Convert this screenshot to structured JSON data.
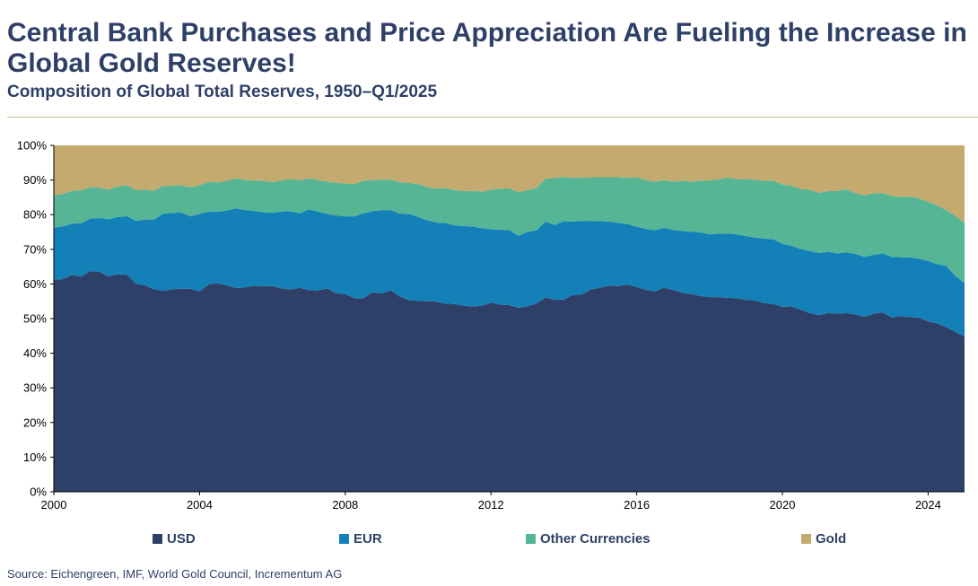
{
  "title": "Central Bank Purchases and Price Appreciation Are Fueling the Increase in Global Gold Reserves!",
  "subtitle": "Composition of Global Total Reserves, 1950–Q1/2025",
  "source": "Source: Eichengreen, IMF, World Gold Council, Incrementum AG",
  "colors": {
    "usd": "#2e4068",
    "eur": "#1380b8",
    "other": "#55b594",
    "gold": "#c4aa6e",
    "title": "#2e4068"
  },
  "chart_data": {
    "type": "area",
    "stacked": true,
    "xlabel": "",
    "ylabel": "",
    "xlim": [
      2000,
      2025.0
    ],
    "ylim": [
      0,
      100
    ],
    "y_ticks": [
      "0%",
      "10%",
      "20%",
      "30%",
      "40%",
      "50%",
      "60%",
      "70%",
      "80%",
      "90%",
      "100%"
    ],
    "x_ticks": [
      "2000",
      "2004",
      "2008",
      "2012",
      "2016",
      "2020",
      "2024"
    ],
    "x": [
      2000.0,
      2000.25,
      2000.5,
      2000.75,
      2001.0,
      2001.25,
      2001.5,
      2001.75,
      2002.0,
      2002.25,
      2002.5,
      2002.75,
      2003.0,
      2003.25,
      2003.5,
      2003.75,
      2004.0,
      2004.25,
      2004.5,
      2004.75,
      2005.0,
      2005.25,
      2005.5,
      2005.75,
      2006.0,
      2006.25,
      2006.5,
      2006.75,
      2007.0,
      2007.25,
      2007.5,
      2007.75,
      2008.0,
      2008.25,
      2008.5,
      2008.75,
      2009.0,
      2009.25,
      2009.5,
      2009.75,
      2010.0,
      2010.25,
      2010.5,
      2010.75,
      2011.0,
      2011.25,
      2011.5,
      2011.75,
      2012.0,
      2012.25,
      2012.5,
      2012.75,
      2013.0,
      2013.25,
      2013.5,
      2013.75,
      2014.0,
      2014.25,
      2014.5,
      2014.75,
      2015.0,
      2015.25,
      2015.5,
      2015.75,
      2016.0,
      2016.25,
      2016.5,
      2016.75,
      2017.0,
      2017.25,
      2017.5,
      2017.75,
      2018.0,
      2018.25,
      2018.5,
      2018.75,
      2019.0,
      2019.25,
      2019.5,
      2019.75,
      2020.0,
      2020.25,
      2020.5,
      2020.75,
      2021.0,
      2021.25,
      2021.5,
      2021.75,
      2022.0,
      2022.25,
      2022.5,
      2022.75,
      2023.0,
      2023.25,
      2023.5,
      2023.75,
      2024.0,
      2024.25,
      2024.5,
      2024.75,
      2025.0
    ],
    "series": [
      {
        "name": "USD",
        "values": [
          61.2,
          61.4,
          62.6,
          62.1,
          63.7,
          63.5,
          62.2,
          62.8,
          62.7,
          60.1,
          59.6,
          58.5,
          58.0,
          58.5,
          58.6,
          58.6,
          57.8,
          59.9,
          60.2,
          59.6,
          58.8,
          59.0,
          59.5,
          59.3,
          59.4,
          58.7,
          58.4,
          58.9,
          58.2,
          58.1,
          58.7,
          57.3,
          57.1,
          55.9,
          55.9,
          57.6,
          57.3,
          58.2,
          56.3,
          55.3,
          55.1,
          55.0,
          54.9,
          54.3,
          54.2,
          53.7,
          53.5,
          53.7,
          54.6,
          54.0,
          53.9,
          53.1,
          53.5,
          54.4,
          56.1,
          55.4,
          55.5,
          56.8,
          57.0,
          58.4,
          58.9,
          59.5,
          59.4,
          59.8,
          59.1,
          58.3,
          57.9,
          58.9,
          58.3,
          57.4,
          57.1,
          56.5,
          56.2,
          56.2,
          56.0,
          55.9,
          55.4,
          55.2,
          54.5,
          54.2,
          53.4,
          53.5,
          52.6,
          51.6,
          51.0,
          51.6,
          51.4,
          51.6,
          51.2,
          50.5,
          51.4,
          51.8,
          50.3,
          50.7,
          50.4,
          50.3,
          49.2,
          48.6,
          47.5,
          46.1,
          44.8
        ]
      },
      {
        "name": "EUR",
        "values": [
          15.1,
          15.2,
          14.8,
          15.4,
          15.2,
          15.5,
          16.5,
          16.5,
          16.9,
          18.1,
          19.0,
          20.1,
          22.3,
          22.0,
          22.0,
          20.9,
          22.4,
          21.0,
          20.7,
          21.6,
          23.0,
          22.3,
          21.6,
          21.4,
          21.1,
          22.2,
          22.6,
          21.5,
          23.3,
          22.8,
          21.5,
          22.5,
          22.4,
          23.6,
          24.5,
          23.4,
          24.0,
          23.1,
          24.0,
          24.9,
          24.2,
          23.4,
          22.8,
          23.3,
          22.7,
          23.0,
          23.1,
          22.4,
          21.2,
          21.6,
          21.7,
          20.8,
          21.5,
          21.1,
          21.9,
          21.6,
          22.6,
          21.2,
          21.2,
          19.8,
          19.2,
          18.5,
          18.2,
          17.5,
          17.4,
          17.6,
          17.6,
          17.3,
          17.3,
          17.9,
          18.0,
          18.4,
          18.1,
          18.3,
          18.5,
          18.4,
          18.4,
          18.2,
          18.6,
          18.7,
          18.2,
          17.5,
          17.5,
          17.9,
          17.9,
          17.7,
          17.4,
          17.5,
          17.5,
          17.3,
          17.0,
          17.0,
          17.5,
          17.0,
          17.2,
          17.0,
          17.4,
          17.1,
          17.7,
          16.2,
          15.4
        ]
      },
      {
        "name": "Other Currencies",
        "values": [
          9.3,
          9.4,
          9.5,
          9.5,
          9.0,
          8.8,
          8.5,
          8.8,
          8.9,
          8.9,
          8.6,
          8.3,
          8.0,
          7.8,
          7.9,
          8.4,
          8.3,
          8.5,
          8.4,
          8.6,
          8.7,
          8.7,
          8.8,
          9.1,
          8.9,
          9.0,
          9.3,
          9.5,
          9.0,
          9.1,
          9.3,
          9.4,
          9.5,
          9.3,
          9.4,
          9.0,
          8.8,
          8.8,
          9.0,
          9.0,
          9.5,
          9.6,
          9.8,
          10.1,
          10.2,
          10.1,
          10.3,
          10.5,
          11.4,
          11.9,
          12.0,
          12.6,
          12.1,
          12.2,
          12.4,
          13.6,
          12.8,
          12.6,
          12.5,
          12.6,
          12.7,
          12.8,
          13.2,
          13.3,
          14.4,
          14.0,
          14.0,
          13.8,
          13.9,
          14.5,
          14.4,
          14.9,
          15.6,
          15.7,
          16.2,
          16.0,
          16.4,
          16.7,
          16.7,
          16.9,
          17.1,
          17.4,
          17.3,
          17.7,
          17.4,
          17.5,
          18.0,
          18.2,
          17.5,
          17.8,
          17.8,
          17.4,
          17.6,
          17.4,
          17.6,
          17.4,
          17.1,
          16.9,
          16.1,
          17.4,
          17.4
        ]
      },
      {
        "name": "Gold",
        "values": [
          14.4,
          14.0,
          13.1,
          13.0,
          12.1,
          12.2,
          12.8,
          11.9,
          11.5,
          12.9,
          12.8,
          13.1,
          11.7,
          11.7,
          11.5,
          12.1,
          11.5,
          10.6,
          10.7,
          10.2,
          9.5,
          10.0,
          10.1,
          10.2,
          10.6,
          10.1,
          9.7,
          10.1,
          9.5,
          10.0,
          10.5,
          10.8,
          11.0,
          11.2,
          10.2,
          10.0,
          9.9,
          9.9,
          10.7,
          10.8,
          11.2,
          12.0,
          12.5,
          12.3,
          12.9,
          13.2,
          13.1,
          13.4,
          12.8,
          12.5,
          12.4,
          13.5,
          12.9,
          12.3,
          9.6,
          9.4,
          9.1,
          9.4,
          9.3,
          9.2,
          9.2,
          9.2,
          9.2,
          9.4,
          9.1,
          10.1,
          10.5,
          10.0,
          10.5,
          10.2,
          10.5,
          10.2,
          10.1,
          9.8,
          9.3,
          9.7,
          9.8,
          9.9,
          10.2,
          10.2,
          11.3,
          11.6,
          12.6,
          12.8,
          13.7,
          13.2,
          13.2,
          12.7,
          13.8,
          14.4,
          13.8,
          13.8,
          14.6,
          14.9,
          14.8,
          15.3,
          16.3,
          17.4,
          18.7,
          20.3,
          22.4
        ]
      }
    ],
    "legend": [
      "USD",
      "EUR",
      "Other Currencies",
      "Gold"
    ],
    "legend_position": "bottom"
  }
}
